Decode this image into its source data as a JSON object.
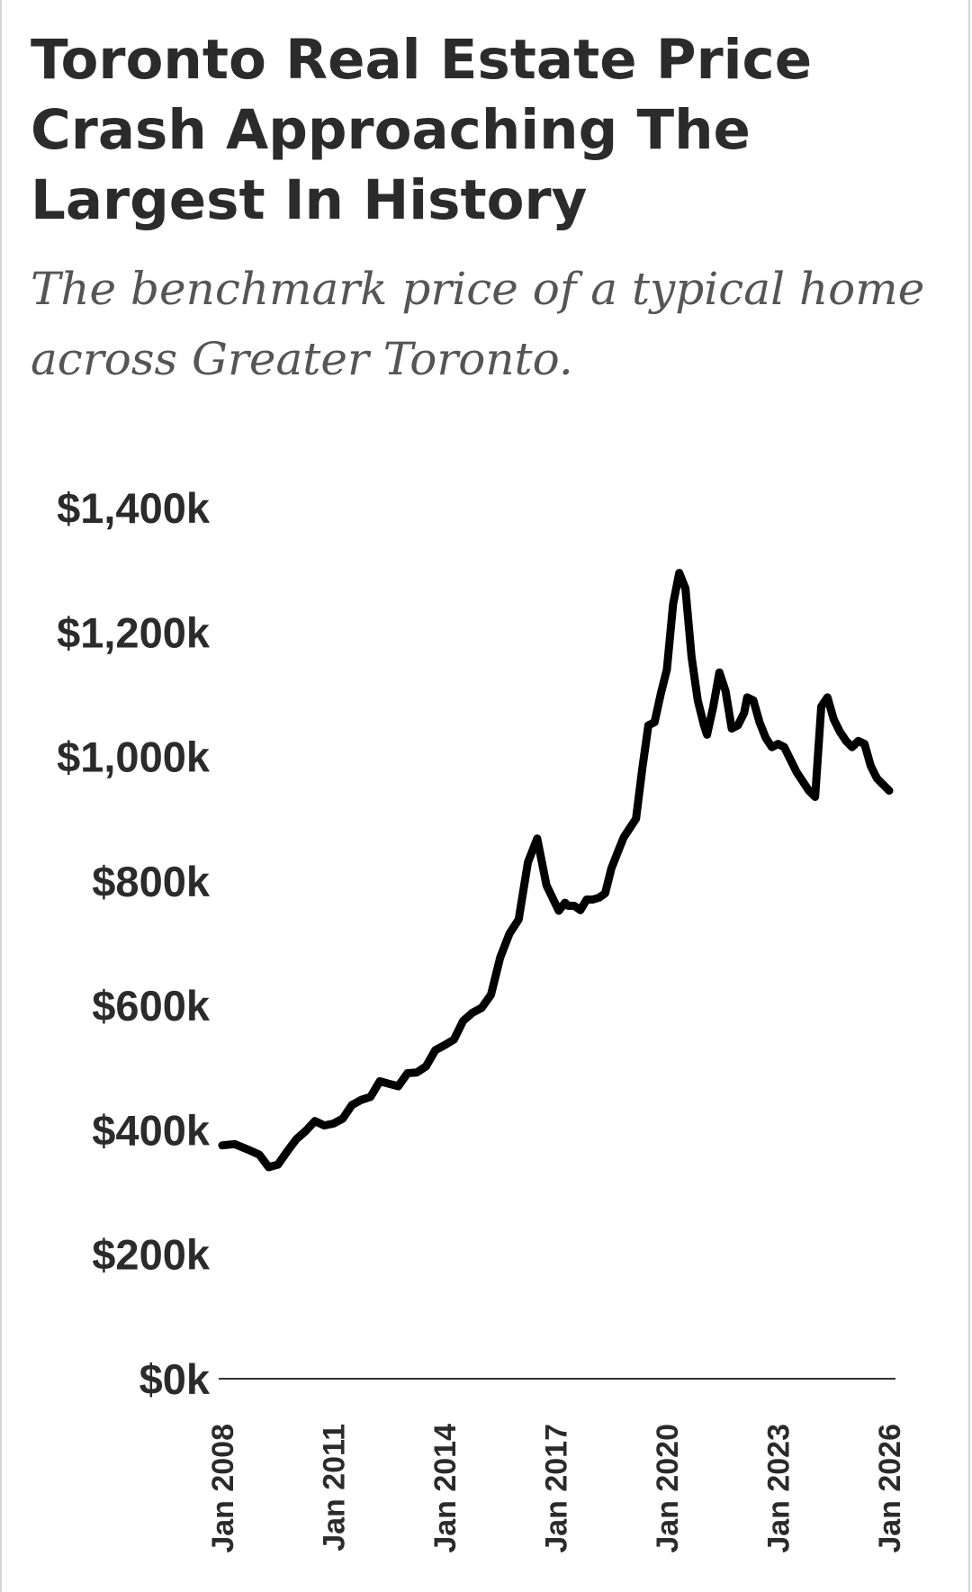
{
  "title": "Toronto Real Estate Price Crash Approaching The Largest In History",
  "subtitle": "The benchmark price of a typical home across Greater Toronto.",
  "chart_data": {
    "type": "line",
    "title": "Toronto Real Estate Price Crash Approaching The Largest In History",
    "subtitle": "The benchmark price of a typical home across Greater Toronto.",
    "xlabel": "",
    "ylabel": "",
    "ylim": [
      0,
      1400
    ],
    "xlim": [
      "2008-01",
      "2026-01"
    ],
    "y_ticks": [
      "$0k",
      "$200k",
      "$400k",
      "$600k",
      "$800k",
      "$1,000k",
      "$1,200k",
      "$1,400k"
    ],
    "x_ticks": [
      "Jan 2008",
      "Jan 2011",
      "Jan 2014",
      "Jan 2017",
      "Jan 2020",
      "Jan 2023",
      "Jan 2026"
    ],
    "grid": false,
    "line_color": "#000000",
    "series": [
      {
        "x": [
          "2008-01",
          "2008-05",
          "2008-09",
          "2009-01",
          "2009-04",
          "2009-07",
          "2009-10",
          "2010-01",
          "2010-04",
          "2010-07",
          "2010-10",
          "2011-01",
          "2011-04",
          "2011-07",
          "2011-10",
          "2012-01",
          "2012-04",
          "2012-07",
          "2012-10",
          "2013-01",
          "2013-04",
          "2013-07",
          "2013-10",
          "2014-01",
          "2014-04",
          "2014-07",
          "2014-10",
          "2015-01",
          "2015-04",
          "2015-07",
          "2015-10",
          "2016-01",
          "2016-04",
          "2016-07",
          "2016-10",
          "2017-01",
          "2017-02",
          "2017-04",
          "2017-05",
          "2017-07",
          "2017-09",
          "2017-11",
          "2018-01",
          "2018-03",
          "2018-05",
          "2018-07",
          "2018-09",
          "2018-11",
          "2019-01",
          "2019-03",
          "2019-05",
          "2019-07",
          "2019-09",
          "2019-11",
          "2020-01",
          "2020-03",
          "2020-05",
          "2020-07",
          "2020-09",
          "2020-11",
          "2021-01",
          "2021-02",
          "2021-04",
          "2021-06",
          "2021-08",
          "2021-10",
          "2021-12",
          "2022-02",
          "2022-03",
          "2022-05",
          "2022-07",
          "2022-09",
          "2022-11",
          "2023-01",
          "2023-03",
          "2023-05",
          "2023-07",
          "2023-09",
          "2023-11",
          "2024-01",
          "2024-03",
          "2024-05",
          "2024-07",
          "2024-09",
          "2024-11",
          "2025-01",
          "2025-03",
          "2025-05",
          "2025-07",
          "2025-09",
          "2025-11",
          "2026-01"
        ],
        "y": [
          375,
          377,
          369,
          360,
          340,
          344,
          365,
          385,
          398,
          414,
          407,
          410,
          418,
          440,
          448,
          453,
          478,
          474,
          470,
          491,
          492,
          502,
          528,
          536,
          545,
          575,
          588,
          596,
          617,
          677,
          715,
          738,
          830,
          868,
          793,
          762,
          752,
          765,
          760,
          760,
          753,
          770,
          770,
          773,
          780,
          820,
          845,
          870,
          885,
          900,
          980,
          1050,
          1055,
          1100,
          1140,
          1245,
          1295,
          1270,
          1160,
          1090,
          1050,
          1035,
          1080,
          1135,
          1105,
          1045,
          1050,
          1070,
          1095,
          1090,
          1055,
          1030,
          1015,
          1020,
          1015,
          995,
          975,
          960,
          945,
          935,
          1080,
          1095,
          1060,
          1040,
          1025,
          1015,
          1025,
          1020,
          985,
          965,
          955,
          945
        ]
      }
    ]
  }
}
